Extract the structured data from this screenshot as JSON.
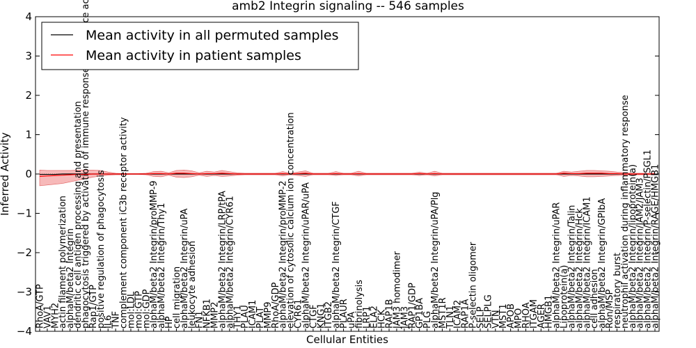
{
  "chart_data": {
    "type": "line",
    "title": "amb2 Integrin signaling -- 546 samples",
    "xlabel": "Cellular Entities",
    "ylabel": "Inferred Activity",
    "ylim": [
      -4,
      4
    ],
    "yticks": [
      -4,
      -3,
      -2,
      -1,
      0,
      1,
      2,
      3,
      4
    ],
    "ytick_labels": [
      "−4",
      "−3",
      "−2",
      "−1",
      "0",
      "1",
      "2",
      "3",
      "4"
    ],
    "legend_position": "top-left",
    "categories": [
      "RhoA/GTP",
      "VAV1",
      "MYH2",
      "actin filament polymerization",
      "alphaM/beta2 Integrin",
      "dendritic cell antigen processing and presentation",
      "phagocytosis triggered by activation of immune response cell surface activating receptor",
      "Rap1/GTP",
      "positive regulation of phagocytosis",
      "IL6",
      "TNF",
      "complement component iC3b receptor activity",
      "mol:LDL",
      "mol:GTP",
      "mol:GDP",
      "alphaM/beta2 Integrin/proMMP-9",
      "alphaM/beta2 Integrin/Thy1",
      "HP",
      "cell migration",
      "alphaM/beta2 Integrin/uPA",
      "leukocyte adhesion",
      "FN1",
      "NFKB1",
      "MMP2",
      "alphaM/beta2 Integrin/LRP/tPA",
      "alphaM/beta2 Integrin/CYR61",
      "THY1",
      "PLAU",
      "ICAM1",
      "PLAT",
      "MMP9",
      "RhoA/GDP",
      "alphaM/beta2 Integrin/proMMP-2",
      "elevation of cytosolic calcium ion concentration",
      "CYR61",
      "alphaM/beta2 Integrin/uPAR/uPA",
      "CTGF",
      "KNG1",
      "ITGB2",
      "alphaM/beta2 Integrin/CTGF",
      "PLAUR",
      "uPA",
      "fibrinolysis",
      "LRP1",
      "ELA2",
      "HCK",
      "RAP1B",
      "JAM3 homodimer",
      "JAM3",
      "RAP1/GDP",
      "GP1BA",
      "PLG",
      "alphaM/beta2 Integrin/uPA/Plg",
      "MST1R",
      "TLN1",
      "ICAM2",
      "RAP1A",
      "P-selectin oligomer",
      "SELP",
      "SELPLG",
      "VTN",
      "MST1",
      "APOB",
      "MPO",
      "RHOA",
      "ITGAM",
      "AGER",
      "HMGB1",
      "alphaM/beta2 Integrin/uPAR",
      "Lipoprotein(a)",
      "alphaM/beta2 Integrin/Talin",
      "alphaM/beta2 Integrin/Hck",
      "alphaM/beta2 Integrin/ICAM1",
      "cell adhesion",
      "alphaM/beta2 Integrin/GPIbA",
      "Ron/MSP",
      "respiratory burst",
      "neutrophil activation during inflammatory response",
      "alphaM/beta2 Integrin/lipoprotein(a)",
      "alphaM/beta2 Integrin/JAM2/JAM3",
      "alphaM/beta2 Integrin/P-selectin/PSGL1",
      "alphaM/beta2 Integrin/RAGE/HMGB1"
    ],
    "series": [
      {
        "name": "Mean activity in all permuted samples",
        "color": "#000000",
        "values": [
          -0.01,
          -0.01,
          -0.01,
          0,
          0,
          0,
          0,
          0,
          0,
          0,
          0,
          0,
          0,
          0,
          0,
          0,
          0,
          0,
          0,
          0,
          0,
          0,
          0,
          0,
          0,
          0,
          0,
          0,
          0,
          0,
          0,
          0,
          0,
          0,
          0,
          0,
          0,
          0,
          0,
          0,
          0,
          0,
          0,
          0,
          0,
          0,
          0,
          0,
          0,
          0,
          0,
          0,
          0,
          0,
          0,
          0,
          0,
          0,
          0,
          0,
          0,
          0,
          0,
          0,
          0,
          0,
          0,
          0,
          0,
          0,
          0,
          0,
          0,
          0,
          0,
          0,
          0,
          0,
          0,
          0,
          0,
          0
        ]
      },
      {
        "name": "Mean activity in patient samples",
        "color": "#ff0000",
        "values": [
          -0.06,
          -0.05,
          -0.04,
          -0.03,
          -0.02,
          -0.01,
          -0.01,
          0,
          0,
          0,
          0,
          0,
          0,
          0,
          0,
          0.01,
          0.01,
          0,
          0.02,
          0.02,
          0.01,
          0,
          0.01,
          0.01,
          0.02,
          0.01,
          0,
          0,
          0,
          0,
          0,
          0,
          0.01,
          0,
          0.01,
          0.02,
          0,
          0,
          0,
          0.01,
          0,
          0,
          0.01,
          0,
          0,
          0,
          0,
          0,
          0,
          0,
          0.01,
          0,
          0.01,
          0,
          0,
          0,
          0,
          0,
          0,
          0,
          0,
          0,
          0,
          0,
          0,
          0,
          0,
          0,
          0,
          0.02,
          0.01,
          0.01,
          0.02,
          0.02,
          0.02,
          0.01,
          0.01,
          0,
          0,
          0,
          0,
          0
        ],
        "band_low": [
          -0.3,
          -0.28,
          -0.26,
          -0.24,
          -0.2,
          -0.16,
          -0.12,
          -0.08,
          -0.05,
          -0.03,
          -0.02,
          -0.02,
          -0.01,
          -0.01,
          -0.02,
          -0.06,
          -0.07,
          -0.03,
          -0.08,
          -0.09,
          -0.07,
          -0.03,
          -0.06,
          -0.04,
          -0.06,
          -0.05,
          -0.03,
          -0.02,
          -0.02,
          -0.02,
          -0.02,
          -0.02,
          -0.05,
          -0.02,
          -0.04,
          -0.06,
          -0.02,
          -0.02,
          -0.02,
          -0.04,
          -0.02,
          -0.02,
          -0.05,
          -0.02,
          -0.02,
          -0.02,
          -0.02,
          -0.02,
          -0.02,
          -0.02,
          -0.04,
          -0.02,
          -0.05,
          -0.02,
          -0.02,
          -0.02,
          -0.02,
          -0.02,
          -0.02,
          -0.02,
          -0.02,
          -0.02,
          -0.02,
          -0.02,
          -0.02,
          -0.02,
          -0.02,
          -0.02,
          -0.02,
          -0.06,
          -0.04,
          -0.05,
          -0.07,
          -0.07,
          -0.06,
          -0.05,
          -0.04,
          -0.03,
          -0.02,
          -0.02,
          -0.02,
          -0.02
        ],
        "band_high": [
          0.1,
          0.09,
          0.09,
          0.09,
          0.09,
          0.1,
          0.1,
          0.1,
          0.09,
          0.05,
          0.02,
          0.01,
          0.01,
          0.01,
          0.02,
          0.06,
          0.07,
          0.03,
          0.09,
          0.1,
          0.08,
          0.03,
          0.07,
          0.05,
          0.09,
          0.06,
          0.03,
          0.02,
          0.02,
          0.02,
          0.02,
          0.02,
          0.06,
          0.02,
          0.05,
          0.08,
          0.02,
          0.02,
          0.02,
          0.06,
          0.02,
          0.02,
          0.07,
          0.02,
          0.02,
          0.02,
          0.02,
          0.02,
          0.02,
          0.02,
          0.05,
          0.02,
          0.07,
          0.02,
          0.02,
          0.02,
          0.02,
          0.02,
          0.02,
          0.02,
          0.02,
          0.02,
          0.02,
          0.02,
          0.02,
          0.02,
          0.02,
          0.02,
          0.02,
          0.07,
          0.05,
          0.07,
          0.09,
          0.09,
          0.08,
          0.07,
          0.05,
          0.04,
          0.02,
          0.02,
          0.02,
          0.02
        ]
      }
    ]
  }
}
